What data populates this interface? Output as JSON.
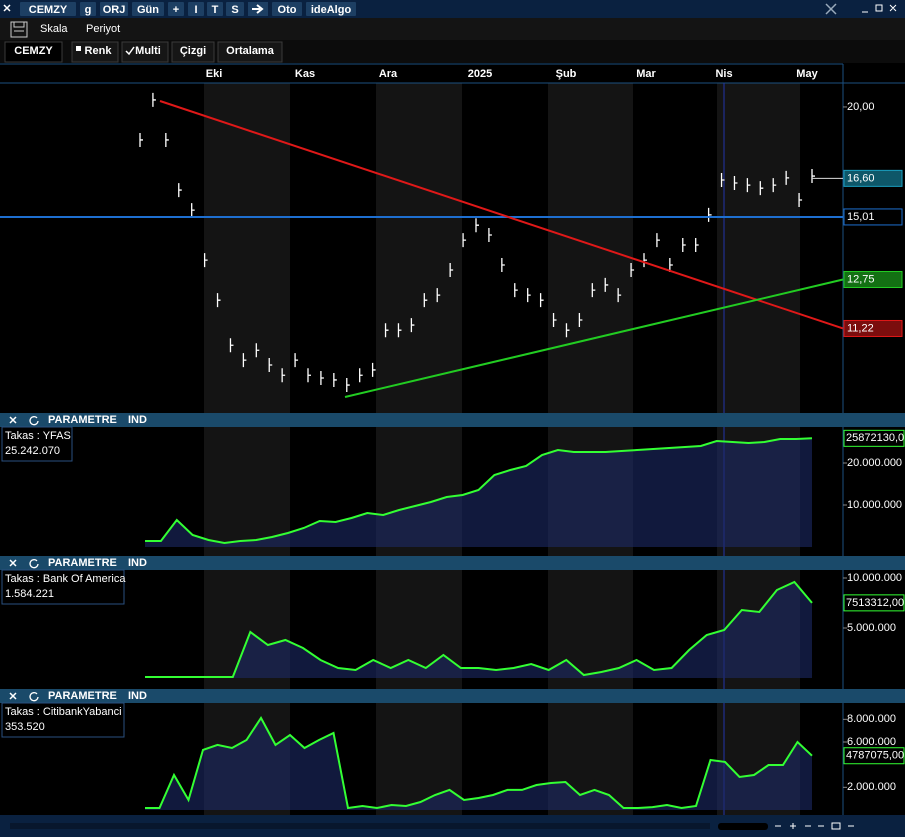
{
  "toolbar": {
    "buttons": [
      "CEMZY",
      "g",
      "ORJ",
      "Gün",
      "+",
      "I",
      "T",
      "S",
      "Oto",
      "ideAlgo"
    ]
  },
  "menu": [
    "Skala",
    "Periyot"
  ],
  "tabs": [
    "CEMZY",
    "Renk",
    "Multi",
    "Çizgi",
    "Ortalama"
  ],
  "months": [
    "Eki",
    "Kas",
    "Ara",
    "2025",
    "Şub",
    "Mar",
    "Nis",
    "May"
  ],
  "chart_data": [
    {
      "type": "bar",
      "name": "CEMZY",
      "log": true,
      "ylim": [
        9.07,
        21.29
      ],
      "yticks": [
        {
          "value": 20,
          "label": "20,00"
        }
      ],
      "values": [
        18.35,
        20.37,
        18.35,
        16.1,
        15.28,
        13.41,
        12.08,
        10.74,
        10.33,
        10.6,
        10.2,
        9.93,
        10.33,
        9.93,
        9.86,
        9.81,
        9.68,
        9.93,
        10.07,
        11.17,
        11.17,
        11.32,
        12.08,
        12.24,
        13.07,
        14.13,
        14.69,
        14.32,
        13.24,
        12.4,
        12.24,
        12.08,
        11.47,
        11.17,
        11.47,
        12.4,
        12.57,
        12.24,
        13.07,
        13.41,
        14.13,
        13.24,
        13.95,
        13.95,
        15.09,
        16.53,
        16.4,
        16.31,
        16.18,
        16.31,
        16.62,
        15.69,
        16.7
      ],
      "color": "#ffffff",
      "levels": [
        {
          "value": 16.6,
          "label": "16,60",
          "color": "#1a9fc0"
        },
        {
          "value": 15.01,
          "label": "15,01",
          "color": "#1e6fd0"
        },
        {
          "value": 12.75,
          "label": "12,75",
          "color": "#22cc22"
        },
        {
          "value": 11.22,
          "label": "11,22",
          "color": "#e01818"
        }
      ]
    },
    {
      "type": "area",
      "header": [
        "PARAMETRE",
        "IND"
      ],
      "takas": "Takas : YFAS",
      "takas_value": "25.242.070",
      "color": "#33ff33",
      "ylim": [
        0,
        28570000
      ],
      "yticks": [
        {
          "value": 10000000,
          "label": "10.000.000"
        },
        {
          "value": 20000000,
          "label": "20.000.000"
        }
      ],
      "current": {
        "value": 25872130,
        "label": "25872130,0"
      },
      "values": [
        1430000,
        1430000,
        6430000,
        2860000,
        1670000,
        950000,
        1430000,
        1670000,
        2380000,
        3330000,
        4520000,
        6190000,
        5950000,
        6900000,
        8100000,
        7620000,
        8810000,
        9760000,
        10710000,
        11900000,
        12380000,
        13570000,
        17140000,
        18330000,
        19290000,
        21900000,
        23100000,
        22620000,
        22620000,
        22620000,
        22860000,
        23100000,
        23330000,
        23570000,
        23810000,
        24050000,
        25240000,
        25000000,
        24760000,
        25000000,
        25710000,
        25710000,
        25872130
      ]
    },
    {
      "type": "area",
      "header": [
        "PARAMETRE",
        "IND"
      ],
      "takas": "Takas : Bank Of America",
      "takas_value": "1.584.221",
      "color": "#33ff33",
      "ylim": [
        0,
        10800000
      ],
      "yticks": [
        {
          "value": 5000000,
          "label": "5.000.000"
        },
        {
          "value": 10000000,
          "label": "10.000.000"
        }
      ],
      "current": {
        "value": 7513312,
        "label": "7513312,00"
      },
      "values": [
        100000,
        100000,
        100000,
        100000,
        100000,
        100000,
        4600000,
        3300000,
        3800000,
        3000000,
        1800000,
        1000000,
        800000,
        1800000,
        1000000,
        1800000,
        1000000,
        2300000,
        1000000,
        1000000,
        800000,
        1000000,
        1400000,
        800000,
        1800000,
        300000,
        600000,
        1000000,
        1800000,
        800000,
        1000000,
        2800000,
        4300000,
        4800000,
        6800000,
        6600000,
        8800000,
        9600000,
        7513312
      ]
    },
    {
      "type": "area",
      "header": [
        "PARAMETRE",
        "IND"
      ],
      "takas": "Takas : CitibankYabanci",
      "takas_value": "353.520",
      "color": "#33ff33",
      "ylim": [
        0,
        9440000
      ],
      "yticks": [
        {
          "value": 2000000,
          "label": "2.000.000"
        },
        {
          "value": 6000000,
          "label": "6.000.000"
        },
        {
          "value": 8000000,
          "label": "8.000.000"
        }
      ],
      "current": {
        "value": 4787075,
        "label": "4787075,00"
      },
      "values": [
        180000,
        180000,
        3090000,
        880000,
        5300000,
        5740000,
        5470000,
        6180000,
        8120000,
        5740000,
        6620000,
        5470000,
        6180000,
        6790000,
        180000,
        350000,
        180000,
        440000,
        350000,
        710000,
        1320000,
        1770000,
        880000,
        1060000,
        1320000,
        1770000,
        1770000,
        2210000,
        2380000,
        2470000,
        1320000,
        1770000,
        1320000,
        180000,
        180000,
        260000,
        440000,
        180000,
        350000,
        4410000,
        4240000,
        2910000,
        3090000,
        3970000,
        3970000,
        6000000,
        4787075
      ]
    }
  ]
}
